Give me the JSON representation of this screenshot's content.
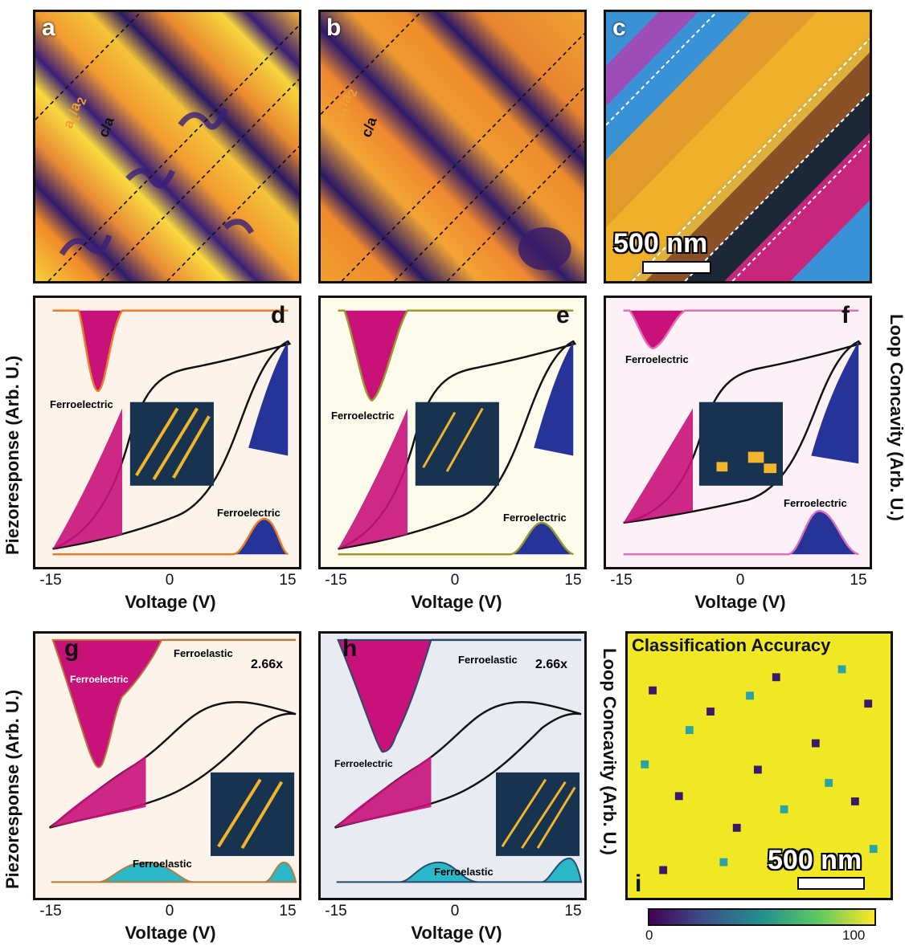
{
  "panel_letters": {
    "a": "a",
    "b": "b",
    "c": "c",
    "d": "d",
    "e": "e",
    "f": "f",
    "g": "g",
    "h": "h",
    "i": "i"
  },
  "domain_labels": {
    "a1a2_main": "a",
    "a1a2_sub1": "1",
    "a1a2_slash": "/a",
    "a1a2_sub2": "2",
    "ca": "c/a"
  },
  "scale_bar": "500 nm",
  "axis": {
    "ylabel_left": "Piezoresponse (Arb. U.)",
    "ylabel_right": "Loop Concavity (Arb. U.)",
    "xlabel": "Voltage (V)",
    "xticks": [
      "-15",
      "0",
      "15"
    ]
  },
  "annotations": {
    "ferroelectric": "Ferroelectric",
    "ferroelastic": "Ferroelastic",
    "multiplier_g": "2.66x",
    "multiplier_h": "2.66x"
  },
  "accuracy_title": "Classification Accuracy",
  "colorbar": {
    "min": "0",
    "max": "100"
  },
  "colors": {
    "magenta": "#c8127a",
    "blue": "#26349a",
    "cyan": "#2ab8c8",
    "orange": "#ee7d22",
    "olive": "#9a9a2a",
    "pink": "#e070b8",
    "navy": "#17334f",
    "gold": "#f5b52a"
  },
  "chart_data": [
    {
      "panel": "d",
      "type": "line",
      "xlim": [
        -17,
        17
      ],
      "series_color": "#ee7d22"
    },
    {
      "panel": "e",
      "type": "line",
      "xlim": [
        -17,
        17
      ],
      "series_color": "#9a9a2a"
    },
    {
      "panel": "f",
      "type": "line",
      "xlim": [
        -17,
        17
      ],
      "series_color": "#e070b8"
    },
    {
      "panel": "g",
      "type": "line",
      "xlim": [
        -17,
        17
      ],
      "series_color": "#b87a3a"
    },
    {
      "panel": "h",
      "type": "line",
      "xlim": [
        -17,
        17
      ],
      "series_color": "#2a4a6a"
    }
  ]
}
